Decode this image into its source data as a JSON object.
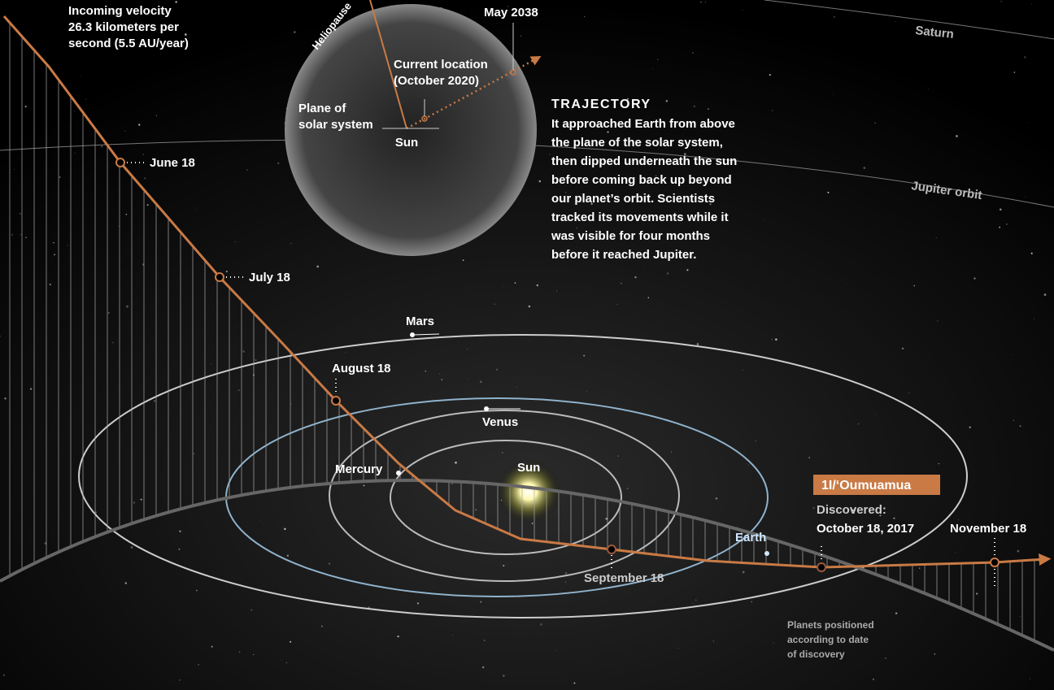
{
  "velocity": [
    "Incoming velocity",
    "26.3 kilometers per",
    "second (5.5 AU/year)"
  ],
  "inset": {
    "heliopause": "Heliopause",
    "future": "May 2038",
    "current_location": [
      "Current location",
      "(October 2020)"
    ],
    "plane": [
      "Plane of",
      "solar system"
    ],
    "sun": "Sun"
  },
  "trajectory_note": {
    "title": "TRAJECTORY",
    "lines": [
      "It approached Earth from above",
      "the plane of the solar system,",
      "then dipped underneath the sun",
      "before coming back up beyond",
      "our planet’s orbit. Scientists",
      "tracked its movements while it",
      "was visible for four months",
      "before it reached Jupiter."
    ]
  },
  "orbits": {
    "saturn": "Saturn",
    "jupiter": "Jupiter orbit"
  },
  "dates": [
    "June 18",
    "July 18",
    "August 18",
    "September 18",
    "November 18"
  ],
  "planets": {
    "mars": "Mars",
    "venus": "Venus",
    "mercury": "Mercury",
    "sun": "Sun",
    "earth": "Earth"
  },
  "object": {
    "name": "1I/ʻOumuamua",
    "discovered": [
      "Discovered:",
      "October 18, 2017"
    ]
  },
  "note": [
    "Planets positioned",
    "according to date",
    "of discovery"
  ]
}
